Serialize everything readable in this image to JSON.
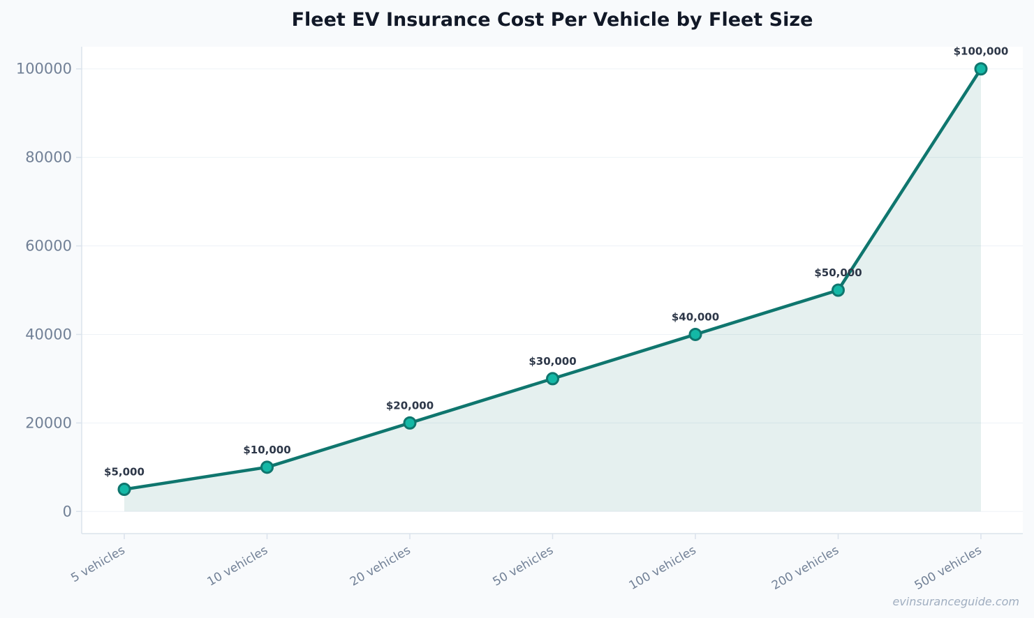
{
  "chart_data": {
    "type": "line",
    "title": "Fleet EV Insurance Cost Per Vehicle by Fleet Size",
    "xlabel": "",
    "ylabel": "",
    "categories": [
      "5 vehicles",
      "10 vehicles",
      "20 vehicles",
      "50 vehicles",
      "100 vehicles",
      "200 vehicles",
      "500 vehicles"
    ],
    "values": [
      5000,
      10000,
      20000,
      30000,
      40000,
      50000,
      100000
    ],
    "data_labels": [
      "$5,000",
      "$10,000",
      "$20,000",
      "$30,000",
      "$40,000",
      "$50,000",
      "$100,000"
    ],
    "yticks": [
      0,
      20000,
      40000,
      60000,
      80000,
      100000
    ],
    "ylim": [
      -5000,
      105000
    ],
    "grid": true,
    "area_fill": true,
    "colors": {
      "line": "#0f766e",
      "marker_fill": "#14b8a6",
      "marker_edge": "#0f766e",
      "area": "#0f766e",
      "grid": "#edf2f7",
      "axis": "#dbe3ec",
      "tick_text": "#718096",
      "label_text": "#2d3748",
      "title_text": "#111827"
    }
  },
  "watermark": "evinsuranceguide.com"
}
